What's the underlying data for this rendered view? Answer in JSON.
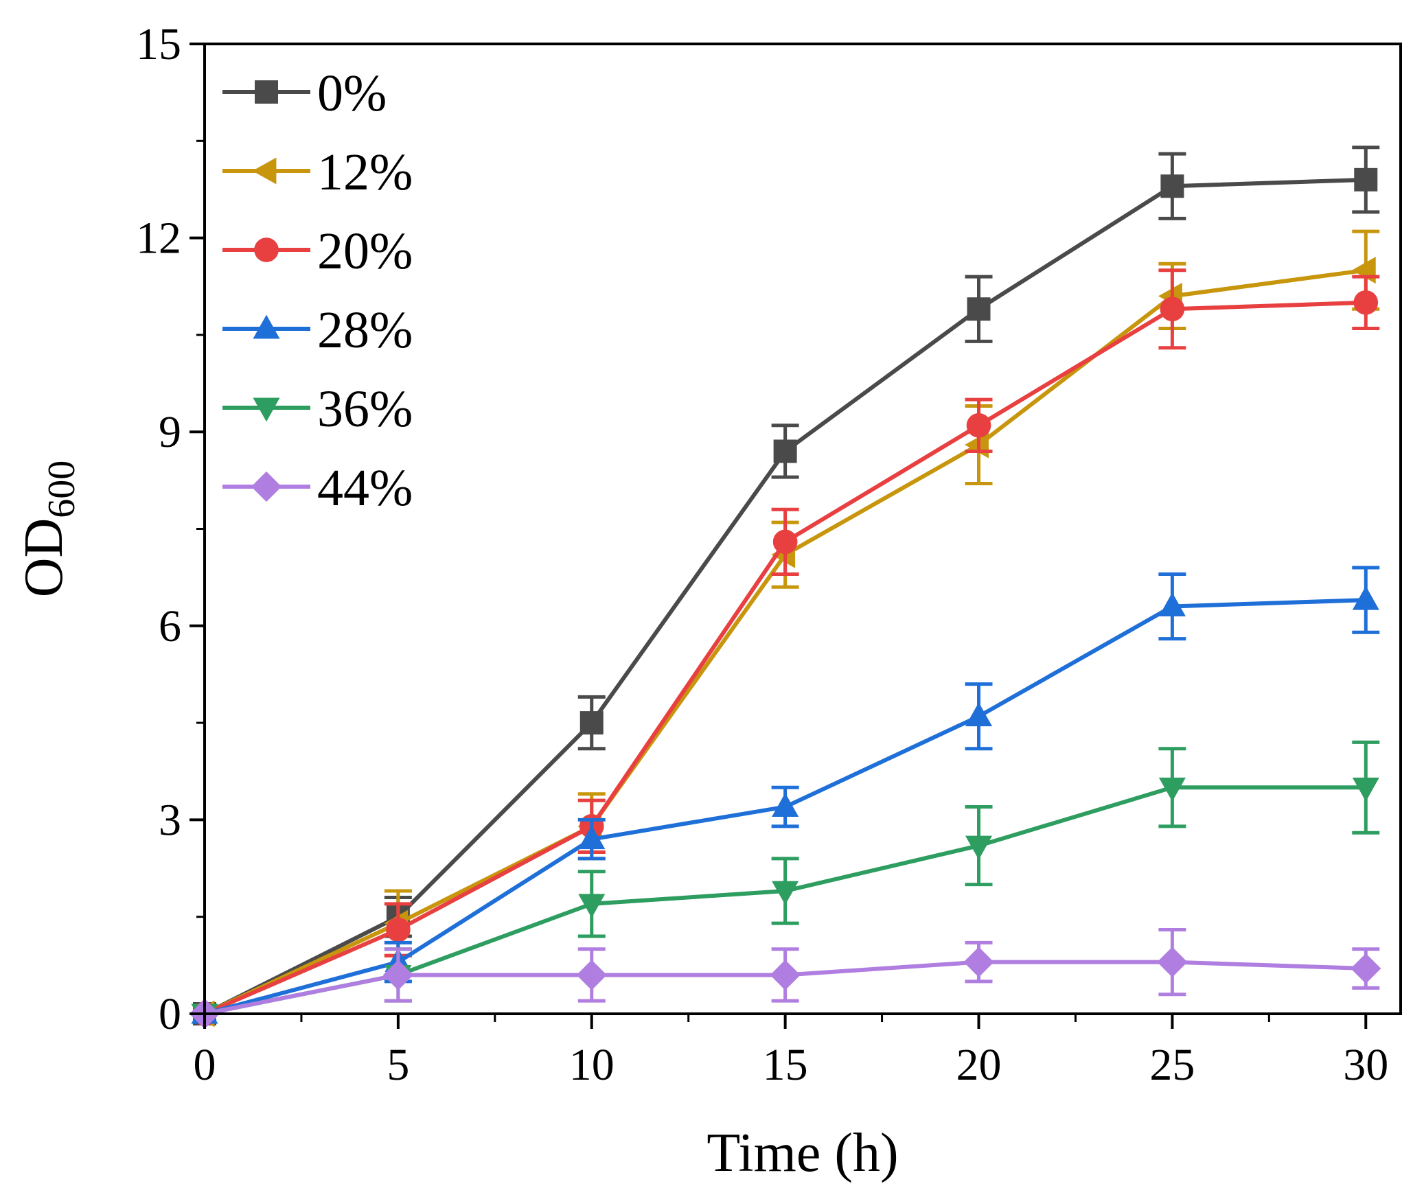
{
  "chart_data": {
    "type": "line",
    "xlabel": "Time (h)",
    "ylabel": "OD",
    "ylabel_subscript": "600",
    "xlim": [
      0,
      30.9
    ],
    "ylim": [
      0,
      15
    ],
    "x_ticks": [
      0,
      5,
      10,
      15,
      20,
      25,
      30
    ],
    "y_ticks": [
      0,
      3,
      6,
      9,
      12,
      15
    ],
    "x_tick_labels": [
      "0",
      "5",
      "10",
      "15",
      "20",
      "25",
      "30"
    ],
    "y_tick_labels": [
      "0",
      "3",
      "6",
      "9",
      "12",
      "15"
    ],
    "legend_position": "top-left",
    "grid": false,
    "x": [
      0,
      5,
      10,
      15,
      20,
      25,
      30
    ],
    "series": [
      {
        "name": "0%",
        "color": "#4a4a4a",
        "marker": "square",
        "values": [
          0,
          1.5,
          4.5,
          8.7,
          10.9,
          12.8,
          12.9
        ],
        "errors": [
          0.05,
          0.3,
          0.4,
          0.4,
          0.5,
          0.5,
          0.5
        ]
      },
      {
        "name": "12%",
        "color": "#c8960c",
        "marker": "triangle-left",
        "values": [
          0,
          1.4,
          2.9,
          7.1,
          8.8,
          11.1,
          11.5
        ],
        "errors": [
          0.05,
          0.5,
          0.5,
          0.5,
          0.6,
          0.5,
          0.6
        ]
      },
      {
        "name": "20%",
        "color": "#e84040",
        "marker": "circle",
        "values": [
          0,
          1.3,
          2.9,
          7.3,
          9.1,
          10.9,
          11.0
        ],
        "errors": [
          0.05,
          0.4,
          0.4,
          0.5,
          0.4,
          0.6,
          0.4
        ]
      },
      {
        "name": "28%",
        "color": "#1f6fd8",
        "marker": "triangle-up",
        "values": [
          0,
          0.8,
          2.7,
          3.2,
          4.6,
          6.3,
          6.4
        ],
        "errors": [
          0.05,
          0.3,
          0.3,
          0.3,
          0.5,
          0.5,
          0.5
        ]
      },
      {
        "name": "36%",
        "color": "#2e9e60",
        "marker": "triangle-down",
        "values": [
          0,
          0.6,
          1.7,
          1.9,
          2.6,
          3.5,
          3.5
        ],
        "errors": [
          0.05,
          0.4,
          0.5,
          0.5,
          0.6,
          0.6,
          0.7
        ]
      },
      {
        "name": "44%",
        "color": "#b07ee0",
        "marker": "diamond",
        "values": [
          0,
          0.6,
          0.6,
          0.6,
          0.8,
          0.8,
          0.7
        ],
        "errors": [
          0.05,
          0.4,
          0.4,
          0.4,
          0.3,
          0.5,
          0.3
        ]
      }
    ]
  }
}
